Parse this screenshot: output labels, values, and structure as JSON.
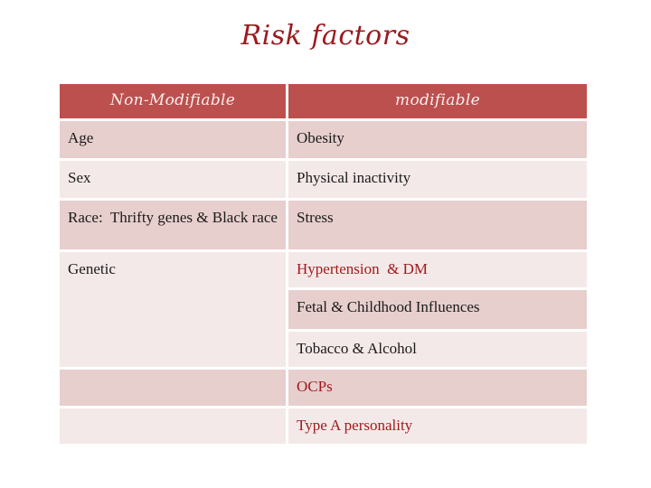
{
  "slide": {
    "title": "Risk factors"
  },
  "table": {
    "headers": {
      "left": "Non-Modifiable",
      "right": "modifiable"
    },
    "non_modifiable": [
      "Age",
      "Sex",
      "Race:  Thrifty genes & Black race",
      "Genetic",
      "",
      ""
    ],
    "modifiable": [
      "Obesity",
      "Physical inactivity",
      "Stress",
      "Hypertension  & DM",
      "Fetal & Childhood Influences",
      "Tobacco & Alcohol",
      "OCPs",
      "Type A personality"
    ]
  },
  "colors": {
    "header_bg": "#bc504e",
    "row_dark": "#e7cfce",
    "row_light": "#f3e9e8",
    "title_text": "#9a1b1e",
    "accent_text": "#a21a1c",
    "body_text": "#1a1a1a",
    "header_text": "#f7efee"
  }
}
